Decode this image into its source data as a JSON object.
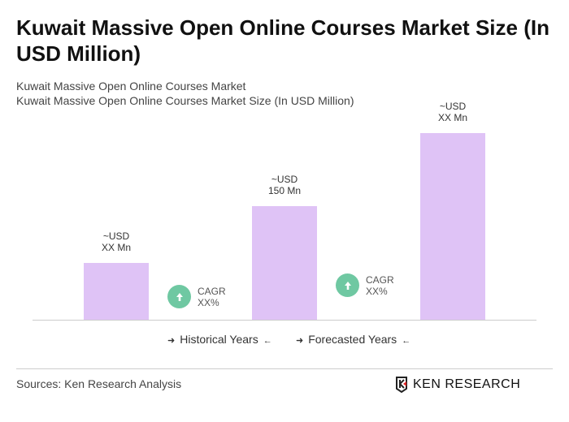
{
  "title": "Kuwait Massive Open Online Courses Market Size (In USD Million)",
  "subtitle1": "Kuwait Massive Open Online Courses Market",
  "subtitle2": "Kuwait Massive Open Online Courses Market Size (In USD Million)",
  "chart_data": {
    "type": "bar",
    "values": [
      75,
      150,
      246
    ],
    "labels": [
      [
        "~USD",
        "XX Mn"
      ],
      [
        "~USD",
        "150 Mn"
      ],
      [
        "~USD",
        "XX Mn"
      ]
    ],
    "bar_color": "#dfc3f6",
    "cagr": [
      {
        "label": "CAGR",
        "value": "XX%"
      },
      {
        "label": "CAGR",
        "value": "XX%"
      }
    ],
    "cagr_color": "#6fc8a2",
    "legend": [
      "Historical Years",
      "Forecasted Years"
    ],
    "grid": false
  },
  "sources": "Sources: Ken Research Analysis",
  "logo": "KEN RESEARCH"
}
